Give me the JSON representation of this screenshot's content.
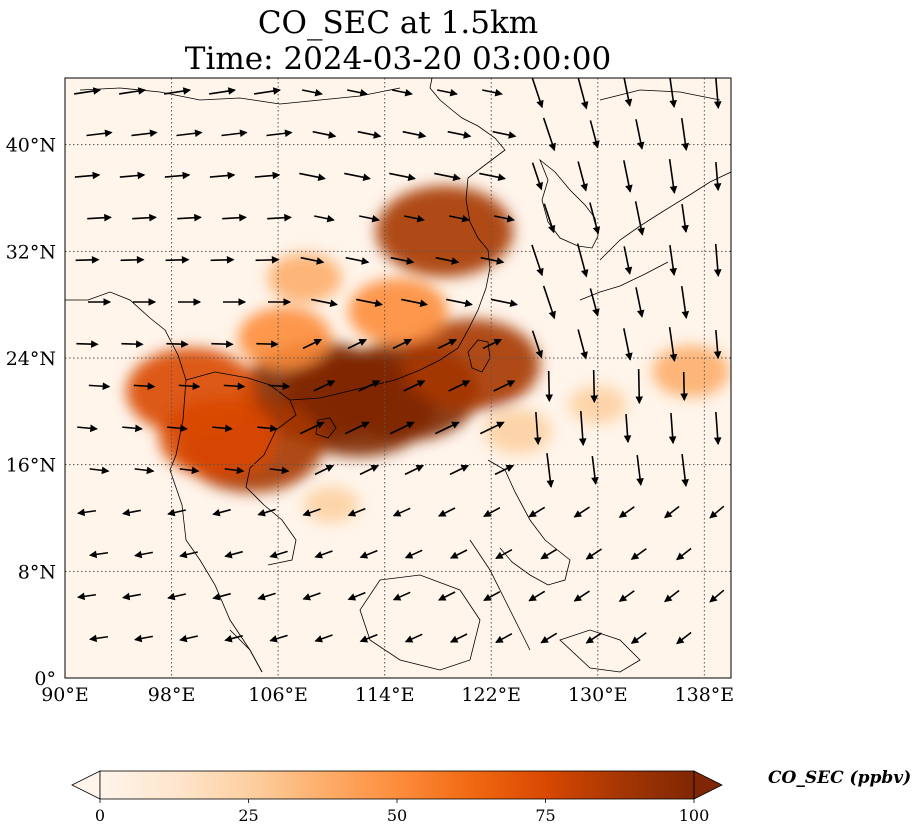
{
  "title": {
    "line1": "CO_SEC at 1.5km",
    "line2": "Time: 2024-03-20 03:00:00"
  },
  "map": {
    "lon_range": [
      90,
      140
    ],
    "lat_range": [
      0,
      45
    ],
    "lon_ticks": [
      {
        "value": 90,
        "label": "90°E"
      },
      {
        "value": 98,
        "label": "98°E"
      },
      {
        "value": 106,
        "label": "106°E"
      },
      {
        "value": 114,
        "label": "114°E"
      },
      {
        "value": 122,
        "label": "122°E"
      },
      {
        "value": 130,
        "label": "130°E"
      },
      {
        "value": 138,
        "label": "138°E"
      }
    ],
    "lat_ticks": [
      {
        "value": 0,
        "label": "0°"
      },
      {
        "value": 8,
        "label": "8°N"
      },
      {
        "value": 16,
        "label": "16°N"
      },
      {
        "value": 24,
        "label": "24°N"
      },
      {
        "value": 32,
        "label": "32°N"
      },
      {
        "value": 40,
        "label": "40°N"
      }
    ],
    "gridlines": true,
    "background_color": "#fff5eb",
    "plumes": [
      {
        "lon": 112,
        "lat": 20.5,
        "value": 100
      },
      {
        "lon": 109,
        "lat": 21.5,
        "value": 95
      },
      {
        "lon": 115.5,
        "lat": 21.5,
        "value": 95
      },
      {
        "lon": 104,
        "lat": 17.5,
        "value": 90
      },
      {
        "lon": 99.5,
        "lat": 21.5,
        "value": 80
      },
      {
        "lon": 120.5,
        "lat": 23.5,
        "value": 85
      },
      {
        "lon": 118.5,
        "lat": 33.5,
        "value": 85
      },
      {
        "lon": 106.5,
        "lat": 25.5,
        "value": 50
      },
      {
        "lon": 115,
        "lat": 27.5,
        "value": 55
      },
      {
        "lon": 101.5,
        "lat": 18,
        "value": 70
      },
      {
        "lon": 108,
        "lat": 30,
        "value": 35
      },
      {
        "lon": 124,
        "lat": 18.5,
        "value": 30
      },
      {
        "lon": 130,
        "lat": 20.5,
        "value": 22
      },
      {
        "lon": 137,
        "lat": 23,
        "value": 38
      },
      {
        "lon": 110,
        "lat": 13,
        "value": 20
      }
    ]
  },
  "colorbar": {
    "label": "CO_SEC (ppbv)",
    "ticks": [
      {
        "value": 0,
        "label": "0"
      },
      {
        "value": 25,
        "label": "25"
      },
      {
        "value": 50,
        "label": "50"
      },
      {
        "value": 75,
        "label": "75"
      },
      {
        "value": 100,
        "label": "100"
      }
    ],
    "min": 0,
    "max": 100,
    "colors": [
      "#fff5eb",
      "#fee6ce",
      "#fdd0a2",
      "#fdae6b",
      "#fd8d3c",
      "#f16913",
      "#d94801",
      "#a63603",
      "#7f2704"
    ]
  }
}
